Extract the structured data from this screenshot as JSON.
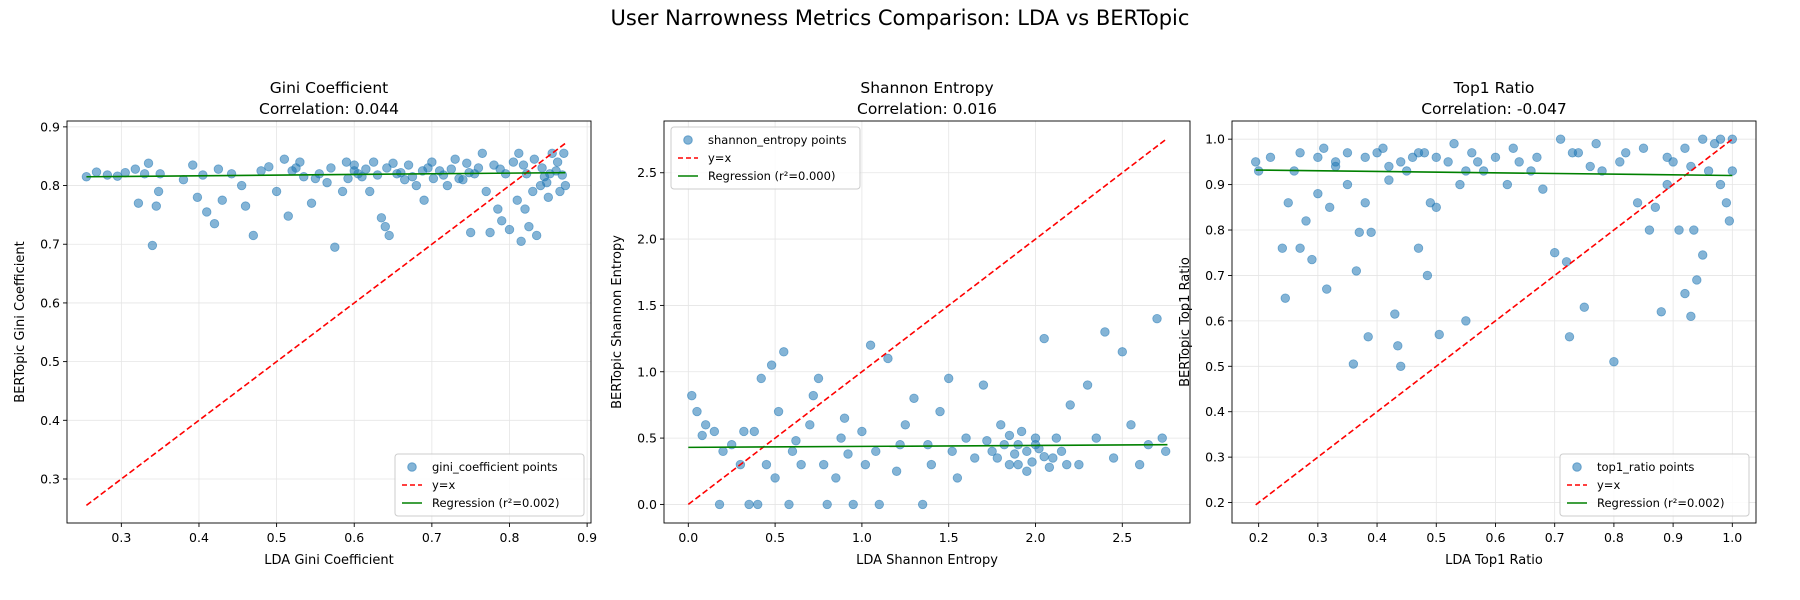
{
  "suptitle": "User Narrowness Metrics Comparison: LDA vs BERTopic",
  "chart_data": [
    {
      "type": "scatter",
      "title": "Gini Coefficient",
      "subtitle": "Correlation: 0.044",
      "xlabel": "LDA Gini Coefficient",
      "ylabel": "BERTopic Gini Coefficient",
      "xlim": [
        0.23,
        0.905
      ],
      "ylim": [
        0.225,
        0.91
      ],
      "xticks": [
        0.3,
        0.4,
        0.5,
        0.6,
        0.7,
        0.8,
        0.9
      ],
      "yticks": [
        0.3,
        0.4,
        0.5,
        0.6,
        0.7,
        0.8,
        0.9
      ],
      "tick_labels_x": [
        "0.3",
        "0.4",
        "0.5",
        "0.6",
        "0.7",
        "0.8",
        "0.9"
      ],
      "tick_labels_y": [
        "0.3",
        "0.4",
        "0.5",
        "0.6",
        "0.7",
        "0.8",
        "0.9"
      ],
      "grid": true,
      "legend_position": "lower-right",
      "legend": [
        "gini_coefficient points",
        "y=x",
        "Regression (r²=0.002)"
      ],
      "identity_line": [
        0.255,
        0.872
      ],
      "regression": {
        "x": [
          0.255,
          0.872
        ],
        "y": [
          0.815,
          0.822
        ]
      },
      "points": [
        [
          0.255,
          0.815
        ],
        [
          0.268,
          0.823
        ],
        [
          0.282,
          0.818
        ],
        [
          0.295,
          0.816
        ],
        [
          0.305,
          0.822
        ],
        [
          0.318,
          0.828
        ],
        [
          0.322,
          0.77
        ],
        [
          0.33,
          0.82
        ],
        [
          0.335,
          0.838
        ],
        [
          0.34,
          0.698
        ],
        [
          0.345,
          0.765
        ],
        [
          0.348,
          0.79
        ],
        [
          0.35,
          0.82
        ],
        [
          0.38,
          0.81
        ],
        [
          0.392,
          0.835
        ],
        [
          0.398,
          0.78
        ],
        [
          0.405,
          0.818
        ],
        [
          0.41,
          0.755
        ],
        [
          0.42,
          0.735
        ],
        [
          0.425,
          0.828
        ],
        [
          0.43,
          0.775
        ],
        [
          0.442,
          0.82
        ],
        [
          0.455,
          0.8
        ],
        [
          0.46,
          0.765
        ],
        [
          0.47,
          0.715
        ],
        [
          0.48,
          0.825
        ],
        [
          0.49,
          0.832
        ],
        [
          0.5,
          0.79
        ],
        [
          0.51,
          0.845
        ],
        [
          0.515,
          0.748
        ],
        [
          0.525,
          0.83
        ],
        [
          0.535,
          0.815
        ],
        [
          0.545,
          0.77
        ],
        [
          0.555,
          0.82
        ],
        [
          0.565,
          0.805
        ],
        [
          0.575,
          0.695
        ],
        [
          0.585,
          0.79
        ],
        [
          0.59,
          0.84
        ],
        [
          0.6,
          0.825
        ],
        [
          0.61,
          0.815
        ],
        [
          0.62,
          0.79
        ],
        [
          0.625,
          0.84
        ],
        [
          0.635,
          0.745
        ],
        [
          0.64,
          0.73
        ],
        [
          0.645,
          0.715
        ],
        [
          0.655,
          0.82
        ],
        [
          0.665,
          0.81
        ],
        [
          0.67,
          0.835
        ],
        [
          0.68,
          0.8
        ],
        [
          0.69,
          0.775
        ],
        [
          0.695,
          0.83
        ],
        [
          0.71,
          0.825
        ],
        [
          0.72,
          0.8
        ],
        [
          0.73,
          0.845
        ],
        [
          0.74,
          0.81
        ],
        [
          0.75,
          0.72
        ],
        [
          0.76,
          0.83
        ],
        [
          0.77,
          0.79
        ],
        [
          0.775,
          0.72
        ],
        [
          0.785,
          0.76
        ],
        [
          0.79,
          0.74
        ],
        [
          0.8,
          0.725
        ],
        [
          0.81,
          0.775
        ],
        [
          0.815,
          0.705
        ],
        [
          0.82,
          0.76
        ],
        [
          0.825,
          0.73
        ],
        [
          0.83,
          0.79
        ],
        [
          0.835,
          0.715
        ],
        [
          0.84,
          0.8
        ],
        [
          0.845,
          0.815
        ],
        [
          0.85,
          0.78
        ],
        [
          0.855,
          0.855
        ],
        [
          0.86,
          0.825
        ],
        [
          0.865,
          0.79
        ],
        [
          0.87,
          0.855
        ],
        [
          0.872,
          0.8
        ],
        [
          0.52,
          0.825
        ],
        [
          0.53,
          0.84
        ],
        [
          0.55,
          0.812
        ],
        [
          0.57,
          0.83
        ],
        [
          0.6,
          0.835
        ],
        [
          0.615,
          0.828
        ],
        [
          0.63,
          0.818
        ],
        [
          0.65,
          0.838
        ],
        [
          0.66,
          0.822
        ],
        [
          0.675,
          0.815
        ],
        [
          0.7,
          0.84
        ],
        [
          0.715,
          0.818
        ],
        [
          0.725,
          0.828
        ],
        [
          0.735,
          0.812
        ],
        [
          0.745,
          0.838
        ],
        [
          0.755,
          0.82
        ],
        [
          0.765,
          0.855
        ],
        [
          0.78,
          0.835
        ],
        [
          0.795,
          0.82
        ],
        [
          0.805,
          0.84
        ],
        [
          0.812,
          0.855
        ],
        [
          0.822,
          0.82
        ],
        [
          0.832,
          0.845
        ],
        [
          0.842,
          0.83
        ],
        [
          0.852,
          0.82
        ],
        [
          0.862,
          0.84
        ],
        [
          0.592,
          0.812
        ],
        [
          0.605,
          0.82
        ],
        [
          0.642,
          0.83
        ],
        [
          0.688,
          0.825
        ],
        [
          0.702,
          0.812
        ],
        [
          0.748,
          0.822
        ],
        [
          0.788,
          0.828
        ],
        [
          0.818,
          0.835
        ],
        [
          0.848,
          0.805
        ],
        [
          0.868,
          0.818
        ]
      ]
    },
    {
      "type": "scatter",
      "title": "Shannon Entropy",
      "subtitle": "Correlation: 0.016",
      "xlabel": "LDA Shannon Entropy",
      "ylabel": "BERTopic Shannon Entropy",
      "xlim": [
        -0.14,
        2.89
      ],
      "ylim": [
        -0.14,
        2.89
      ],
      "xticks": [
        0.0,
        0.5,
        1.0,
        1.5,
        2.0,
        2.5
      ],
      "yticks": [
        0.0,
        0.5,
        1.0,
        1.5,
        2.0,
        2.5
      ],
      "tick_labels_x": [
        "0.0",
        "0.5",
        "1.0",
        "1.5",
        "2.0",
        "2.5"
      ],
      "tick_labels_y": [
        "0.0",
        "0.5",
        "1.0",
        "1.5",
        "2.0",
        "2.5"
      ],
      "grid": true,
      "legend_position": "upper-left",
      "legend": [
        "shannon_entropy points",
        "y=x",
        "Regression (r²=0.000)"
      ],
      "identity_line": [
        0.0,
        2.76
      ],
      "regression": {
        "x": [
          0.0,
          2.76
        ],
        "y": [
          0.43,
          0.45
        ]
      },
      "points": [
        [
          0.02,
          0.82
        ],
        [
          0.05,
          0.7
        ],
        [
          0.08,
          0.52
        ],
        [
          0.1,
          0.6
        ],
        [
          0.15,
          0.55
        ],
        [
          0.18,
          0.0
        ],
        [
          0.2,
          0.4
        ],
        [
          0.25,
          0.45
        ],
        [
          0.3,
          0.3
        ],
        [
          0.35,
          0.0
        ],
        [
          0.38,
          0.55
        ],
        [
          0.4,
          0.0
        ],
        [
          0.42,
          0.95
        ],
        [
          0.45,
          0.3
        ],
        [
          0.48,
          1.05
        ],
        [
          0.5,
          0.2
        ],
        [
          0.52,
          0.7
        ],
        [
          0.55,
          1.15
        ],
        [
          0.58,
          0.0
        ],
        [
          0.6,
          0.4
        ],
        [
          0.65,
          0.3
        ],
        [
          0.7,
          0.6
        ],
        [
          0.72,
          0.82
        ],
        [
          0.75,
          0.95
        ],
        [
          0.78,
          0.3
        ],
        [
          0.8,
          0.0
        ],
        [
          0.85,
          0.2
        ],
        [
          0.88,
          0.5
        ],
        [
          0.9,
          0.65
        ],
        [
          0.95,
          0.0
        ],
        [
          1.0,
          0.55
        ],
        [
          1.02,
          0.3
        ],
        [
          1.05,
          1.2
        ],
        [
          1.08,
          0.4
        ],
        [
          1.1,
          0.0
        ],
        [
          1.15,
          1.1
        ],
        [
          1.2,
          0.25
        ],
        [
          1.25,
          0.6
        ],
        [
          1.3,
          0.8
        ],
        [
          1.35,
          0.0
        ],
        [
          1.38,
          0.45
        ],
        [
          1.4,
          0.3
        ],
        [
          1.45,
          0.7
        ],
        [
          1.5,
          0.95
        ],
        [
          1.55,
          0.2
        ],
        [
          1.6,
          0.5
        ],
        [
          1.65,
          0.35
        ],
        [
          1.7,
          0.9
        ],
        [
          1.75,
          0.4
        ],
        [
          1.8,
          0.6
        ],
        [
          1.85,
          0.3
        ],
        [
          1.9,
          0.45
        ],
        [
          1.95,
          0.25
        ],
        [
          2.0,
          0.5
        ],
        [
          2.05,
          1.25
        ],
        [
          2.1,
          0.35
        ],
        [
          2.15,
          0.4
        ],
        [
          2.2,
          0.75
        ],
        [
          2.25,
          0.3
        ],
        [
          2.3,
          0.9
        ],
        [
          2.35,
          0.5
        ],
        [
          2.4,
          1.3
        ],
        [
          2.45,
          0.35
        ],
        [
          2.5,
          1.15
        ],
        [
          2.55,
          0.6
        ],
        [
          2.6,
          0.3
        ],
        [
          2.65,
          0.45
        ],
        [
          2.7,
          1.4
        ],
        [
          2.73,
          0.5
        ],
        [
          2.75,
          0.4
        ],
        [
          1.82,
          0.45
        ],
        [
          1.88,
          0.38
        ],
        [
          1.92,
          0.55
        ],
        [
          1.98,
          0.32
        ],
        [
          2.02,
          0.42
        ],
        [
          2.08,
          0.28
        ],
        [
          2.12,
          0.5
        ],
        [
          1.78,
          0.35
        ],
        [
          1.72,
          0.48
        ],
        [
          2.18,
          0.3
        ],
        [
          1.85,
          0.52
        ],
        [
          1.95,
          0.4
        ],
        [
          2.05,
          0.36
        ],
        [
          1.9,
          0.3
        ],
        [
          2.0,
          0.45
        ],
        [
          0.32,
          0.55
        ],
        [
          0.62,
          0.48
        ],
        [
          0.92,
          0.38
        ],
        [
          1.22,
          0.45
        ],
        [
          1.52,
          0.4
        ]
      ]
    },
    {
      "type": "scatter",
      "title": "Top1 Ratio",
      "subtitle": "Correlation: -0.047",
      "xlabel": "LDA Top1 Ratio",
      "ylabel": "BERTopic Top1 Ratio",
      "xlim": [
        0.155,
        1.04
      ],
      "ylim": [
        0.155,
        1.04
      ],
      "xticks": [
        0.2,
        0.3,
        0.4,
        0.5,
        0.6,
        0.7,
        0.8,
        0.9,
        1.0
      ],
      "yticks": [
        0.2,
        0.3,
        0.4,
        0.5,
        0.6,
        0.7,
        0.8,
        0.9,
        1.0
      ],
      "tick_labels_x": [
        "0.2",
        "0.3",
        "0.4",
        "0.5",
        "0.6",
        "0.7",
        "0.8",
        "0.9",
        "1.0"
      ],
      "tick_labels_y": [
        "0.2",
        "0.3",
        "0.4",
        "0.5",
        "0.6",
        "0.7",
        "0.8",
        "0.9",
        "1.0"
      ],
      "grid": true,
      "legend_position": "lower-right",
      "legend": [
        "top1_ratio points",
        "y=x",
        "Regression (r²=0.002)"
      ],
      "identity_line": [
        0.195,
        1.0
      ],
      "regression": {
        "x": [
          0.195,
          1.0
        ],
        "y": [
          0.932,
          0.92
        ]
      },
      "points": [
        [
          0.195,
          0.95
        ],
        [
          0.2,
          0.93
        ],
        [
          0.22,
          0.96
        ],
        [
          0.24,
          0.76
        ],
        [
          0.245,
          0.65
        ],
        [
          0.25,
          0.86
        ],
        [
          0.26,
          0.93
        ],
        [
          0.27,
          0.76
        ],
        [
          0.28,
          0.82
        ],
        [
          0.29,
          0.735
        ],
        [
          0.3,
          0.88
        ],
        [
          0.31,
          0.98
        ],
        [
          0.315,
          0.67
        ],
        [
          0.32,
          0.85
        ],
        [
          0.33,
          0.95
        ],
        [
          0.35,
          0.9
        ],
        [
          0.36,
          0.505
        ],
        [
          0.365,
          0.71
        ],
        [
          0.37,
          0.795
        ],
        [
          0.38,
          0.86
        ],
        [
          0.385,
          0.565
        ],
        [
          0.39,
          0.795
        ],
        [
          0.4,
          0.97
        ],
        [
          0.42,
          0.91
        ],
        [
          0.43,
          0.615
        ],
        [
          0.435,
          0.545
        ],
        [
          0.44,
          0.5
        ],
        [
          0.45,
          0.93
        ],
        [
          0.46,
          0.96
        ],
        [
          0.47,
          0.76
        ],
        [
          0.48,
          0.97
        ],
        [
          0.485,
          0.7
        ],
        [
          0.49,
          0.86
        ],
        [
          0.5,
          0.85
        ],
        [
          0.505,
          0.57
        ],
        [
          0.52,
          0.95
        ],
        [
          0.54,
          0.9
        ],
        [
          0.55,
          0.6
        ],
        [
          0.56,
          0.97
        ],
        [
          0.58,
          0.93
        ],
        [
          0.6,
          0.96
        ],
        [
          0.62,
          0.9
        ],
        [
          0.64,
          0.95
        ],
        [
          0.66,
          0.93
        ],
        [
          0.68,
          0.89
        ],
        [
          0.7,
          0.75
        ],
        [
          0.72,
          0.73
        ],
        [
          0.725,
          0.565
        ],
        [
          0.73,
          0.97
        ],
        [
          0.75,
          0.63
        ],
        [
          0.76,
          0.94
        ],
        [
          0.78,
          0.93
        ],
        [
          0.8,
          0.51
        ],
        [
          0.82,
          0.97
        ],
        [
          0.84,
          0.86
        ],
        [
          0.86,
          0.8
        ],
        [
          0.87,
          0.85
        ],
        [
          0.88,
          0.62
        ],
        [
          0.89,
          0.9
        ],
        [
          0.9,
          0.95
        ],
        [
          0.91,
          0.8
        ],
        [
          0.92,
          0.66
        ],
        [
          0.93,
          0.61
        ],
        [
          0.935,
          0.8
        ],
        [
          0.94,
          0.69
        ],
        [
          0.95,
          0.745
        ],
        [
          0.96,
          0.93
        ],
        [
          0.97,
          0.99
        ],
        [
          0.98,
          0.9
        ],
        [
          0.99,
          0.86
        ],
        [
          0.995,
          0.82
        ],
        [
          1.0,
          0.93
        ],
        [
          1.0,
          1.0
        ],
        [
          0.98,
          1.0
        ],
        [
          0.95,
          1.0
        ],
        [
          0.92,
          0.98
        ],
        [
          0.35,
          0.97
        ],
        [
          0.38,
          0.96
        ],
        [
          0.41,
          0.98
        ],
        [
          0.44,
          0.95
        ],
        [
          0.47,
          0.97
        ],
        [
          0.5,
          0.96
        ],
        [
          0.53,
          0.99
        ],
        [
          0.57,
          0.95
        ],
        [
          0.63,
          0.98
        ],
        [
          0.67,
          0.96
        ],
        [
          0.71,
          1.0
        ],
        [
          0.74,
          0.97
        ],
        [
          0.77,
          0.99
        ],
        [
          0.81,
          0.95
        ],
        [
          0.85,
          0.98
        ],
        [
          0.89,
          0.96
        ],
        [
          0.93,
          0.94
        ],
        [
          0.3,
          0.96
        ],
        [
          0.33,
          0.94
        ],
        [
          0.27,
          0.97
        ],
        [
          0.42,
          0.94
        ],
        [
          0.55,
          0.93
        ]
      ]
    }
  ]
}
